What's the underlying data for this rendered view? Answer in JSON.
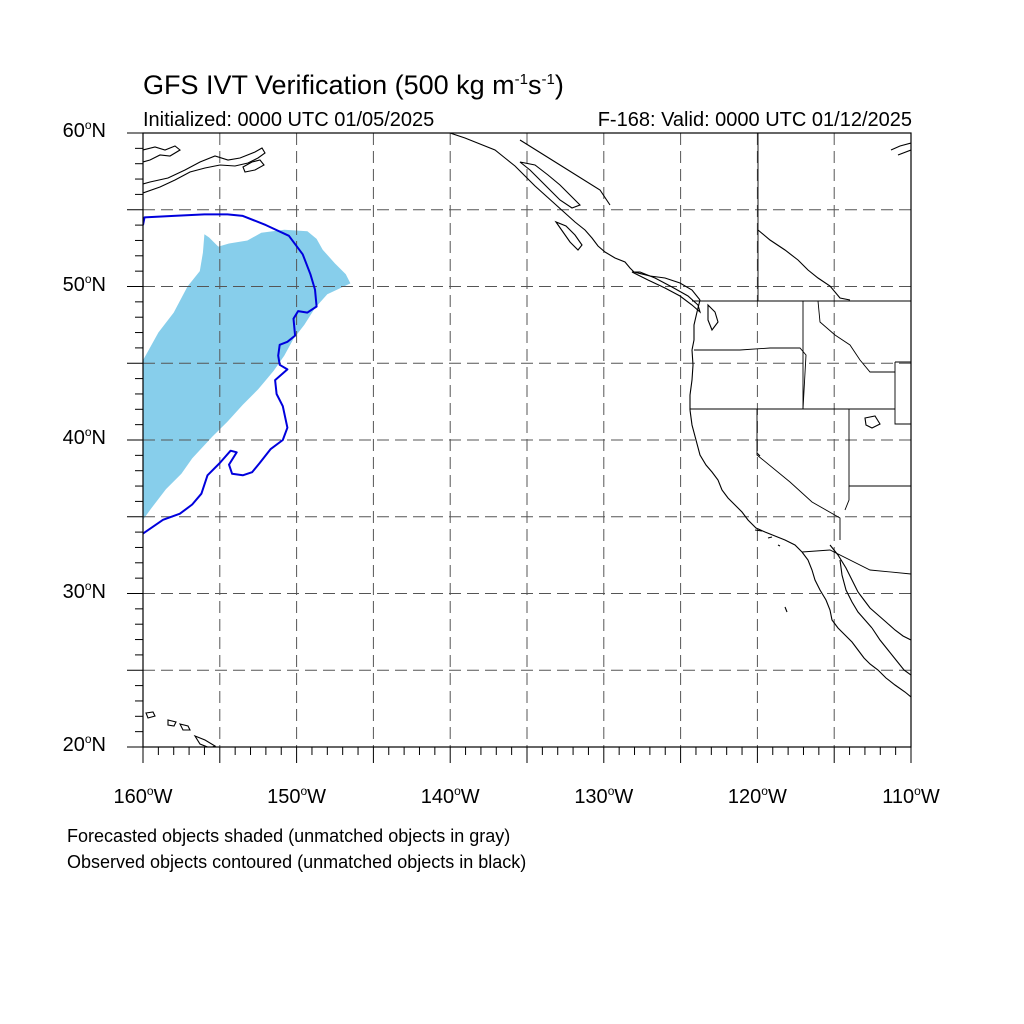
{
  "title": {
    "prefix": "GFS IVT Verification (500 kg m",
    "exp1": "-1",
    "mid": "s",
    "exp2": "-1",
    "suffix": ")"
  },
  "initialized": "Initialized: 0000 UTC 01/05/2025",
  "valid": "F-168: Valid: 0000 UTC 01/12/2025",
  "footnotes": {
    "forecast": "Forecasted objects shaded (unmatched objects in gray)",
    "observed": "Observed objects contoured (unmatched objects in black)"
  },
  "map": {
    "lon_range": [
      -160,
      -110
    ],
    "lat_range": [
      20,
      60
    ],
    "lat_ticks": [
      {
        "value": 60,
        "text": "60",
        "hemi": "N"
      },
      {
        "value": 50,
        "text": "50",
        "hemi": "N"
      },
      {
        "value": 40,
        "text": "40",
        "hemi": "N"
      },
      {
        "value": 30,
        "text": "30",
        "hemi": "N"
      },
      {
        "value": 20,
        "text": "20",
        "hemi": "N"
      }
    ],
    "lon_ticks": [
      {
        "value": -160,
        "text": "160",
        "hemi": "W"
      },
      {
        "value": -150,
        "text": "150",
        "hemi": "W"
      },
      {
        "value": -140,
        "text": "140",
        "hemi": "W"
      },
      {
        "value": -130,
        "text": "130",
        "hemi": "W"
      },
      {
        "value": -120,
        "text": "120",
        "hemi": "W"
      },
      {
        "value": -110,
        "text": "110",
        "hemi": "W"
      }
    ],
    "gridline_step_deg": 5,
    "forecast_color": "#87ceeb",
    "observed_color": "#0000dd",
    "forecast_object": [
      [
        -160,
        34.8
      ],
      [
        -159.5,
        35.5
      ],
      [
        -158.5,
        36.8
      ],
      [
        -157.5,
        37.8
      ],
      [
        -156.8,
        38.8
      ],
      [
        -155.5,
        40.2
      ],
      [
        -154.5,
        41.2
      ],
      [
        -153.5,
        42.3
      ],
      [
        -152.5,
        43.3
      ],
      [
        -151.5,
        44.5
      ],
      [
        -150.8,
        45.5
      ],
      [
        -150.2,
        46.6
      ],
      [
        -149.5,
        47.5
      ],
      [
        -148.8,
        48.6
      ],
      [
        -148,
        49.5
      ],
      [
        -146.5,
        50.2
      ],
      [
        -146.8,
        50.8
      ],
      [
        -147.5,
        51.5
      ],
      [
        -148.3,
        52.4
      ],
      [
        -148.7,
        53.1
      ],
      [
        -149.3,
        53.6
      ],
      [
        -150.8,
        53.7
      ],
      [
        -152.3,
        53.5
      ],
      [
        -153.2,
        53.0
      ],
      [
        -154.4,
        52.8
      ],
      [
        -155.1,
        52.6
      ],
      [
        -155.7,
        53.2
      ],
      [
        -156,
        53.4
      ],
      [
        -156.1,
        52.2
      ],
      [
        -156.3,
        51.0
      ],
      [
        -157.1,
        50.0
      ],
      [
        -158,
        48.3
      ],
      [
        -159,
        47
      ],
      [
        -160,
        45.2
      ]
    ],
    "observed_object": [
      [
        -160,
        54.0
      ],
      [
        -159.9,
        54.5
      ],
      [
        -158,
        54.6
      ],
      [
        -156,
        54.7
      ],
      [
        -154.5,
        54.7
      ],
      [
        -153.5,
        54.6
      ],
      [
        -152,
        54.0
      ],
      [
        -150.5,
        53.3
      ],
      [
        -149.6,
        52.1
      ],
      [
        -149.1,
        50.8
      ],
      [
        -148.8,
        49.8
      ],
      [
        -148.7,
        48.7
      ],
      [
        -149.3,
        48.3
      ],
      [
        -149.9,
        48.4
      ],
      [
        -150.2,
        47.9
      ],
      [
        -150.1,
        46.8
      ],
      [
        -150.6,
        46.4
      ],
      [
        -151.1,
        46.2
      ],
      [
        -151.2,
        45.5
      ],
      [
        -151.1,
        44.9
      ],
      [
        -150.6,
        44.6
      ],
      [
        -151.4,
        43.9
      ],
      [
        -151.3,
        43.0
      ],
      [
        -150.9,
        42.2
      ],
      [
        -150.6,
        40.8
      ],
      [
        -150.9,
        40.0
      ],
      [
        -151.7,
        39.4
      ],
      [
        -152.4,
        38.5
      ],
      [
        -152.9,
        37.9
      ],
      [
        -153.5,
        37.7
      ],
      [
        -154.2,
        37.8
      ],
      [
        -154.4,
        38.4
      ],
      [
        -153.9,
        39.2
      ],
      [
        -154.3,
        39.3
      ],
      [
        -155.0,
        38.5
      ],
      [
        -155.8,
        37.7
      ],
      [
        -156.2,
        36.5
      ],
      [
        -156.8,
        35.8
      ],
      [
        -157.6,
        35.2
      ],
      [
        -158.7,
        34.8
      ],
      [
        -160,
        33.9
      ]
    ]
  }
}
